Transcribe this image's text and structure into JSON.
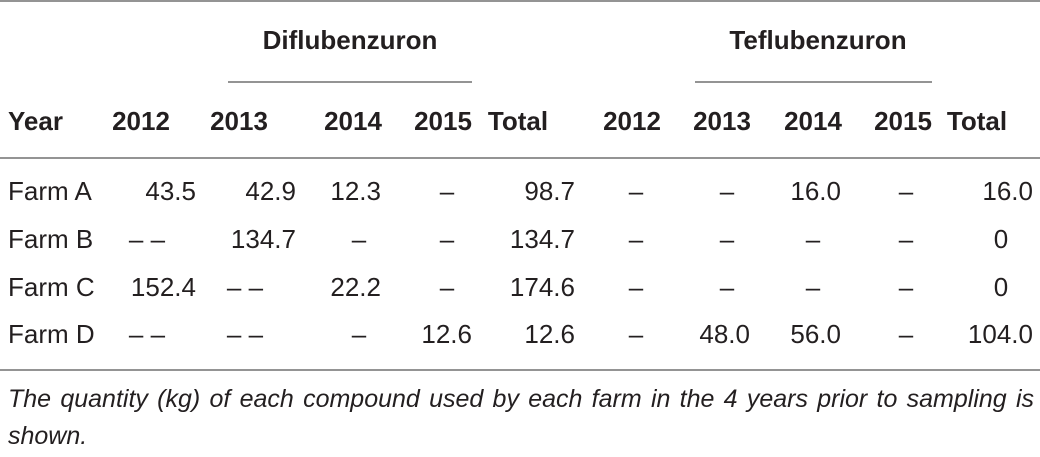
{
  "table": {
    "groups": [
      "Diflubenzuron",
      "Teflubenzuron"
    ],
    "header": [
      "Year",
      "2012",
      "2013",
      "2014",
      "2015",
      "Total",
      "2012",
      "2013",
      "2014",
      "2015",
      "Total"
    ],
    "rows": [
      [
        "Farm A",
        "43.5",
        "42.9",
        "12.3",
        "–",
        "98.7",
        "–",
        "–",
        "16.0",
        "–",
        "16.0"
      ],
      [
        "Farm B",
        "– –",
        "134.7",
        "–",
        "–",
        "134.7",
        "–",
        "–",
        "–",
        "–",
        "0"
      ],
      [
        "Farm C",
        "152.4",
        "– –",
        "22.2",
        "–",
        "174.6",
        "–",
        "–",
        "–",
        "–",
        "0"
      ],
      [
        "Farm D",
        "– –",
        "– –",
        "–",
        "12.6",
        "12.6",
        "–",
        "48.0",
        "56.0",
        "–",
        "104.0"
      ]
    ]
  },
  "caption": "The quantity (kg) of each compound used by each farm in the 4 years prior to sampling is shown."
}
